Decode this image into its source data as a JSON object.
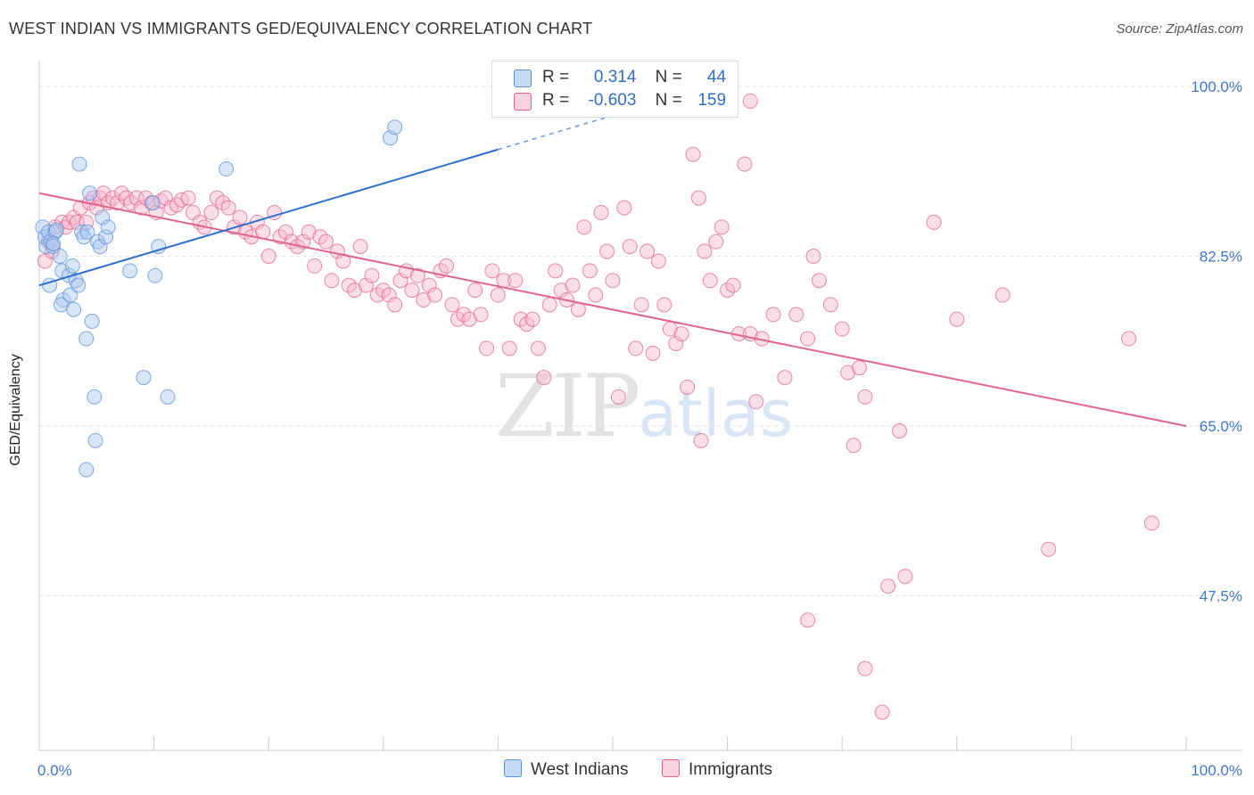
{
  "title": "WEST INDIAN VS IMMIGRANTS GED/EQUIVALENCY CORRELATION CHART",
  "source": "Source: ZipAtlas.com",
  "watermark": {
    "zip": "ZIP",
    "atlas": "atlas"
  },
  "legend": {
    "rows": [
      {
        "r_label": "R =",
        "r_value": "0.314",
        "n_label": "N =",
        "n_value": "44",
        "color": "#aac8f0"
      },
      {
        "r_label": "R =",
        "r_value": "-0.603",
        "n_label": "N =",
        "n_value": "159",
        "color": "#f7b7cb"
      }
    ]
  },
  "bottom_legend": [
    {
      "label": "West Indians",
      "color": "#aac8f0"
    },
    {
      "label": "Immigrants",
      "color": "#f7b7cb"
    }
  ],
  "chart_data": {
    "type": "scatter",
    "title": "WEST INDIAN VS IMMIGRANTS GED/EQUIVALENCY CORRELATION CHART",
    "xlabel": "",
    "ylabel": "GED/Equivalency",
    "xlim": [
      0,
      100
    ],
    "ylim": [
      30,
      100
    ],
    "x_tick_labels": [
      "0.0%",
      "100.0%"
    ],
    "y_ticks": [
      47.5,
      65.0,
      82.5,
      100.0
    ],
    "y_tick_labels": [
      "47.5%",
      "65.0%",
      "82.5%",
      "100.0%"
    ],
    "grid": true,
    "legend_position": "top-center",
    "series": [
      {
        "name": "West Indians",
        "color": "#5b8fd9",
        "fill": "#aac8f0",
        "trend": {
          "x": [
            0,
            40
          ],
          "y": [
            79.5,
            93.5
          ],
          "dashed_to": [
            50,
            97
          ]
        },
        "points": [
          [
            0.3,
            85.5
          ],
          [
            0.5,
            84.5
          ],
          [
            0.6,
            83.5
          ],
          [
            0.8,
            85
          ],
          [
            1.0,
            84
          ],
          [
            1.2,
            83.5
          ],
          [
            1.4,
            85
          ],
          [
            0.9,
            79.5
          ],
          [
            1.8,
            82.5
          ],
          [
            2.0,
            81
          ],
          [
            2.1,
            78
          ],
          [
            1.9,
            77.5
          ],
          [
            2.6,
            80.5
          ],
          [
            2.7,
            78.5
          ],
          [
            2.9,
            81.5
          ],
          [
            3.0,
            77
          ],
          [
            3.2,
            80
          ],
          [
            3.4,
            79.5
          ],
          [
            3.5,
            92
          ],
          [
            3.7,
            85
          ],
          [
            3.9,
            84.5
          ],
          [
            4.1,
            74
          ],
          [
            4.2,
            85
          ],
          [
            4.4,
            89
          ],
          [
            4.6,
            75.8
          ],
          [
            4.8,
            68
          ],
          [
            4.9,
            63.5
          ],
          [
            5.1,
            84
          ],
          [
            5.3,
            83.5
          ],
          [
            5.5,
            86.5
          ],
          [
            5.8,
            84.5
          ],
          [
            6.0,
            85.5
          ],
          [
            4.1,
            60.5
          ],
          [
            7.9,
            81
          ],
          [
            9.1,
            70
          ],
          [
            9.9,
            88
          ],
          [
            10.1,
            80.5
          ],
          [
            10.4,
            83.5
          ],
          [
            11.2,
            68
          ],
          [
            16.3,
            91.5
          ],
          [
            30.6,
            94.7
          ],
          [
            31.0,
            95.8
          ],
          [
            1.2,
            83.8
          ],
          [
            1.5,
            85.2
          ]
        ]
      },
      {
        "name": "Immigrants",
        "color": "#e0648f",
        "fill": "#f7b7cb",
        "trend": {
          "x": [
            0,
            100
          ],
          "y": [
            89,
            65
          ]
        },
        "points": [
          [
            0.5,
            82
          ],
          [
            0.8,
            84
          ],
          [
            1.1,
            83
          ],
          [
            1.4,
            85.5
          ],
          [
            2.0,
            86
          ],
          [
            2.3,
            85.5
          ],
          [
            2.6,
            86
          ],
          [
            3.0,
            86.5
          ],
          [
            3.3,
            86
          ],
          [
            3.6,
            87.5
          ],
          [
            4.1,
            86
          ],
          [
            4.4,
            88
          ],
          [
            4.7,
            88.5
          ],
          [
            5.0,
            87.5
          ],
          [
            5.3,
            88.5
          ],
          [
            5.6,
            89
          ],
          [
            6.0,
            88
          ],
          [
            6.4,
            88.5
          ],
          [
            6.8,
            88
          ],
          [
            7.2,
            89
          ],
          [
            7.6,
            88.5
          ],
          [
            8.0,
            88
          ],
          [
            8.5,
            88.5
          ],
          [
            8.9,
            87.5
          ],
          [
            9.3,
            88.5
          ],
          [
            9.8,
            88
          ],
          [
            10.2,
            87
          ],
          [
            10.6,
            88.2
          ],
          [
            11.0,
            88.5
          ],
          [
            11.5,
            87.5
          ],
          [
            12.0,
            87.8
          ],
          [
            12.4,
            88.3
          ],
          [
            13.0,
            88.5
          ],
          [
            13.4,
            87
          ],
          [
            14.0,
            86
          ],
          [
            14.4,
            85.5
          ],
          [
            15.0,
            87
          ],
          [
            15.5,
            88.5
          ],
          [
            16.0,
            88
          ],
          [
            16.5,
            87.5
          ],
          [
            17.0,
            85.5
          ],
          [
            17.5,
            86.5
          ],
          [
            18.0,
            85
          ],
          [
            18.5,
            84.5
          ],
          [
            19.0,
            86
          ],
          [
            19.5,
            85
          ],
          [
            20.0,
            82.5
          ],
          [
            20.5,
            87
          ],
          [
            21.0,
            84.5
          ],
          [
            21.5,
            85
          ],
          [
            22.0,
            84
          ],
          [
            22.5,
            83.5
          ],
          [
            23.0,
            84
          ],
          [
            23.5,
            85
          ],
          [
            24.0,
            81.5
          ],
          [
            24.5,
            84.5
          ],
          [
            25.0,
            84
          ],
          [
            25.5,
            80
          ],
          [
            26.0,
            83
          ],
          [
            26.5,
            82
          ],
          [
            27.0,
            79.5
          ],
          [
            27.5,
            79
          ],
          [
            28.0,
            83.5
          ],
          [
            28.5,
            79.5
          ],
          [
            29.0,
            80.5
          ],
          [
            29.5,
            78.5
          ],
          [
            30.0,
            79
          ],
          [
            30.5,
            78.5
          ],
          [
            31.0,
            77.5
          ],
          [
            31.5,
            80
          ],
          [
            32.0,
            81
          ],
          [
            32.5,
            79
          ],
          [
            33.0,
            80.5
          ],
          [
            33.5,
            78
          ],
          [
            34.0,
            79.5
          ],
          [
            34.5,
            78.5
          ],
          [
            35.0,
            81
          ],
          [
            35.5,
            81.5
          ],
          [
            36.0,
            77.5
          ],
          [
            36.5,
            76
          ],
          [
            37.0,
            76.5
          ],
          [
            37.5,
            76
          ],
          [
            38.0,
            79
          ],
          [
            38.5,
            76.5
          ],
          [
            39.0,
            73
          ],
          [
            39.5,
            81
          ],
          [
            40.0,
            78.5
          ],
          [
            40.5,
            80
          ],
          [
            41.0,
            73
          ],
          [
            41.5,
            80
          ],
          [
            42.0,
            76
          ],
          [
            42.5,
            75.5
          ],
          [
            43.0,
            76
          ],
          [
            43.5,
            73
          ],
          [
            44.0,
            70
          ],
          [
            44.5,
            77.5
          ],
          [
            45.0,
            81
          ],
          [
            45.5,
            79
          ],
          [
            46.0,
            78
          ],
          [
            46.5,
            79.5
          ],
          [
            47.0,
            77
          ],
          [
            47.5,
            85.5
          ],
          [
            48.0,
            81
          ],
          [
            48.5,
            78.5
          ],
          [
            49.0,
            87
          ],
          [
            49.5,
            83
          ],
          [
            50.0,
            80
          ],
          [
            50.5,
            68
          ],
          [
            51.0,
            87.5
          ],
          [
            51.5,
            83.5
          ],
          [
            52.0,
            73
          ],
          [
            52.5,
            77.5
          ],
          [
            53.0,
            83
          ],
          [
            53.5,
            72.5
          ],
          [
            54.0,
            82
          ],
          [
            54.5,
            77.5
          ],
          [
            55.0,
            75
          ],
          [
            55.5,
            73.5
          ],
          [
            56.0,
            74.5
          ],
          [
            56.5,
            69
          ],
          [
            57.0,
            93
          ],
          [
            57.5,
            88.5
          ],
          [
            58.0,
            83
          ],
          [
            58.5,
            80
          ],
          [
            59.0,
            84
          ],
          [
            59.5,
            85.5
          ],
          [
            60.0,
            79
          ],
          [
            60.5,
            79.5
          ],
          [
            61.0,
            74.5
          ],
          [
            61.5,
            92
          ],
          [
            62.0,
            74.5
          ],
          [
            62.5,
            67.5
          ],
          [
            63.0,
            74
          ],
          [
            64.0,
            76.5
          ],
          [
            65.0,
            70
          ],
          [
            66.0,
            76.5
          ],
          [
            67.0,
            74
          ],
          [
            67.5,
            82.5
          ],
          [
            68.0,
            80
          ],
          [
            69.0,
            77.5
          ],
          [
            70.0,
            75
          ],
          [
            70.5,
            70.5
          ],
          [
            71.0,
            63
          ],
          [
            71.5,
            71
          ],
          [
            72.0,
            68
          ],
          [
            75.0,
            64.5
          ],
          [
            78.0,
            86
          ],
          [
            80.0,
            76
          ],
          [
            84.0,
            78.5
          ],
          [
            95.0,
            74
          ],
          [
            97.0,
            55
          ],
          [
            88.0,
            52.3
          ],
          [
            75.5,
            49.5
          ],
          [
            74.0,
            48.5
          ],
          [
            67.0,
            45
          ],
          [
            72.0,
            40
          ],
          [
            73.5,
            35.5
          ],
          [
            62.0,
            98.5
          ],
          [
            57.7,
            63.5
          ]
        ]
      }
    ]
  }
}
